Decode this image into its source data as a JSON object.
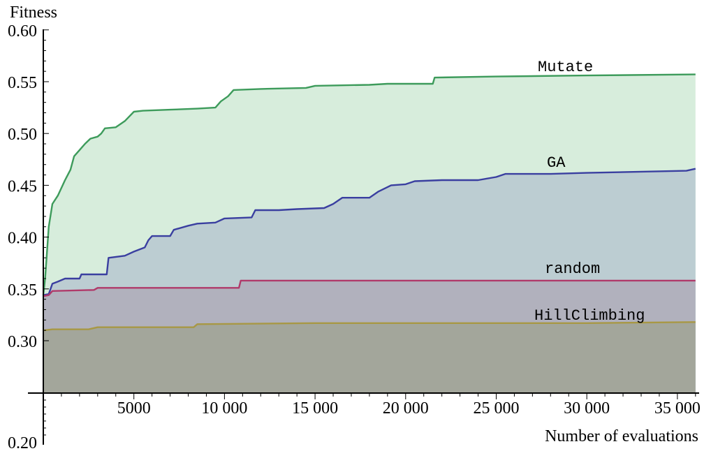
{
  "chart_data": {
    "type": "area",
    "xlabel": "Number of evaluations",
    "ylabel": "Fitness",
    "xlim": [
      0,
      36200
    ],
    "ylim": [
      0.2,
      0.6
    ],
    "x_ticks": [
      5000,
      10000,
      15000,
      20000,
      25000,
      30000,
      35000
    ],
    "x_tick_labels": [
      "5000",
      "10 000",
      "15 000",
      "20 000",
      "25 000",
      "30 000",
      "35 000"
    ],
    "y_ticks": [
      0.2,
      0.3,
      0.35,
      0.4,
      0.45,
      0.5,
      0.55,
      0.6
    ],
    "y_tick_labels": [
      "0.20",
      "0.30",
      "0.35",
      "0.40",
      "0.45",
      "0.50",
      "0.55",
      "0.60"
    ],
    "fill_origin": 0.25,
    "grid": false,
    "series": [
      {
        "name": "Mutate",
        "color": "#3d9b5b",
        "fill": "#d7eddc",
        "points": [
          [
            0,
            0.344
          ],
          [
            100,
            0.36
          ],
          [
            300,
            0.41
          ],
          [
            500,
            0.432
          ],
          [
            800,
            0.44
          ],
          [
            1200,
            0.455
          ],
          [
            1500,
            0.465
          ],
          [
            1700,
            0.478
          ],
          [
            2000,
            0.484
          ],
          [
            2300,
            0.49
          ],
          [
            2600,
            0.495
          ],
          [
            3000,
            0.497
          ],
          [
            3200,
            0.5
          ],
          [
            3400,
            0.505
          ],
          [
            4000,
            0.506
          ],
          [
            4500,
            0.512
          ],
          [
            5000,
            0.521
          ],
          [
            5500,
            0.522
          ],
          [
            7000,
            0.523
          ],
          [
            8500,
            0.524
          ],
          [
            9500,
            0.525
          ],
          [
            9800,
            0.531
          ],
          [
            10200,
            0.536
          ],
          [
            10500,
            0.542
          ],
          [
            12000,
            0.543
          ],
          [
            14500,
            0.544
          ],
          [
            15000,
            0.546
          ],
          [
            18000,
            0.547
          ],
          [
            19000,
            0.548
          ],
          [
            21500,
            0.548
          ],
          [
            21600,
            0.554
          ],
          [
            25000,
            0.555
          ],
          [
            30000,
            0.556
          ],
          [
            36000,
            0.557
          ]
        ]
      },
      {
        "name": "GA",
        "color": "#3a3fa0",
        "fill": "#bccdd2",
        "points": [
          [
            0,
            0.344
          ],
          [
            300,
            0.345
          ],
          [
            500,
            0.355
          ],
          [
            800,
            0.357
          ],
          [
            1200,
            0.36
          ],
          [
            2000,
            0.36
          ],
          [
            2100,
            0.364
          ],
          [
            3500,
            0.364
          ],
          [
            3600,
            0.38
          ],
          [
            4500,
            0.382
          ],
          [
            5000,
            0.386
          ],
          [
            5600,
            0.39
          ],
          [
            5800,
            0.397
          ],
          [
            6000,
            0.401
          ],
          [
            7000,
            0.401
          ],
          [
            7200,
            0.407
          ],
          [
            8000,
            0.411
          ],
          [
            8500,
            0.413
          ],
          [
            9500,
            0.414
          ],
          [
            10000,
            0.418
          ],
          [
            11500,
            0.419
          ],
          [
            11700,
            0.426
          ],
          [
            13000,
            0.426
          ],
          [
            14000,
            0.427
          ],
          [
            15500,
            0.428
          ],
          [
            16000,
            0.432
          ],
          [
            16500,
            0.438
          ],
          [
            18000,
            0.438
          ],
          [
            18500,
            0.444
          ],
          [
            19200,
            0.45
          ],
          [
            20000,
            0.451
          ],
          [
            20500,
            0.454
          ],
          [
            22000,
            0.455
          ],
          [
            24000,
            0.455
          ],
          [
            25000,
            0.458
          ],
          [
            25500,
            0.461
          ],
          [
            28000,
            0.461
          ],
          [
            30000,
            0.462
          ],
          [
            35500,
            0.464
          ],
          [
            36000,
            0.466
          ]
        ]
      },
      {
        "name": "random",
        "color": "#b03a6a",
        "fill": "#b1b1bd",
        "points": [
          [
            0,
            0.343
          ],
          [
            300,
            0.344
          ],
          [
            500,
            0.348
          ],
          [
            2800,
            0.349
          ],
          [
            3000,
            0.351
          ],
          [
            10800,
            0.351
          ],
          [
            10900,
            0.358
          ],
          [
            36000,
            0.358
          ]
        ]
      },
      {
        "name": "HillClimbing",
        "color": "#a89845",
        "fill": "#a3a69b",
        "points": [
          [
            0,
            0.31
          ],
          [
            500,
            0.311
          ],
          [
            2500,
            0.311
          ],
          [
            3000,
            0.313
          ],
          [
            8300,
            0.313
          ],
          [
            8500,
            0.316
          ],
          [
            15000,
            0.317
          ],
          [
            30000,
            0.317
          ],
          [
            36000,
            0.318
          ]
        ]
      }
    ],
    "annotations": [
      "Mutate",
      "GA",
      "random",
      "HillClimbing"
    ]
  }
}
